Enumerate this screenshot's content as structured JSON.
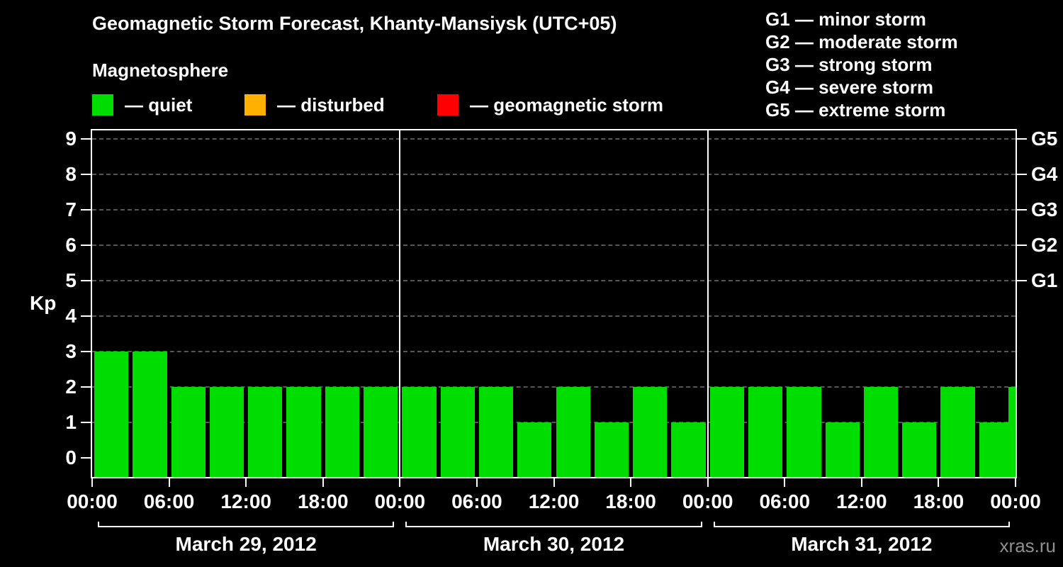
{
  "title": "Geomagnetic Storm Forecast, Khanty-Mansiysk (UTC+05)",
  "legend": {
    "heading": "Magnetosphere",
    "items": [
      {
        "name": "quiet",
        "label": "— quiet",
        "color": "#00dd00"
      },
      {
        "name": "disturbed",
        "label": "— disturbed",
        "color": "#ffb000"
      },
      {
        "name": "storm",
        "label": "— geomagnetic storm",
        "color": "#ff0000"
      }
    ]
  },
  "g_scale": {
    "items": [
      {
        "code": "G1",
        "label": "G1 — minor storm"
      },
      {
        "code": "G2",
        "label": "G2 — moderate storm"
      },
      {
        "code": "G3",
        "label": "G3 — strong storm"
      },
      {
        "code": "G4",
        "label": "G4 — severe storm"
      },
      {
        "code": "G5",
        "label": "G5 — extreme storm"
      }
    ]
  },
  "watermark": "xras.ru",
  "chart_data": {
    "type": "bar",
    "title": "Geomagnetic Storm Forecast, Khanty-Mansiysk (UTC+05)",
    "xlabel": "",
    "ylabel": "Kp",
    "ylim": [
      0,
      9
    ],
    "y_ticks": [
      0,
      1,
      2,
      3,
      4,
      5,
      6,
      7,
      8,
      9
    ],
    "bar_interval_hours": 3,
    "bar_color": "#00dd00",
    "grid": "dashed horizontal gridlines at each Kp level",
    "legend_position": "top",
    "days": [
      {
        "label": "March 29, 2012",
        "values": [
          3,
          3,
          2,
          2,
          2,
          2,
          2,
          2
        ]
      },
      {
        "label": "March 30, 2012",
        "values": [
          2,
          2,
          2,
          1,
          2,
          1,
          2,
          1
        ]
      },
      {
        "label": "March 31, 2012",
        "values": [
          2,
          2,
          2,
          1,
          2,
          1,
          2,
          1
        ]
      }
    ],
    "trailing_partial_value": 2,
    "x_tick_labels": [
      "00:00",
      "06:00",
      "12:00",
      "18:00",
      "00:00",
      "06:00",
      "12:00",
      "18:00",
      "00:00",
      "06:00",
      "12:00",
      "18:00",
      "00:00"
    ],
    "right_axis": [
      {
        "label": "G1",
        "kp": 5
      },
      {
        "label": "G2",
        "kp": 6
      },
      {
        "label": "G3",
        "kp": 7
      },
      {
        "label": "G4",
        "kp": 8
      },
      {
        "label": "G5",
        "kp": 9
      }
    ]
  }
}
